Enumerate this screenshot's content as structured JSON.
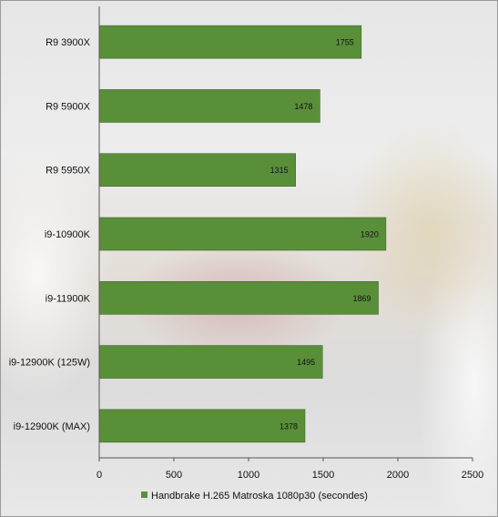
{
  "chart_data": {
    "type": "bar",
    "orientation": "horizontal",
    "categories": [
      "R9 3900X",
      "R9 5900X",
      "R9 5950X",
      "i9-10900K",
      "i9-11900K",
      "i9-12900K (125W)",
      "i9-12900K (MAX)"
    ],
    "series": [
      {
        "name": "Handbrake H.265 Matroska 1080p30 (secondes)",
        "values": [
          1755,
          1478,
          1315,
          1920,
          1869,
          1495,
          1378
        ],
        "value_labels": [
          "1755",
          "1478",
          "1315",
          "1920",
          "1869",
          "1495",
          "1378"
        ],
        "color": "#5a8f3a"
      }
    ],
    "xlim": [
      0,
      2500
    ],
    "xticks": [
      0,
      500,
      1000,
      1500,
      2000,
      2500
    ],
    "xtick_labels": [
      "0",
      "500",
      "1000",
      "1500",
      "2000",
      "2500"
    ],
    "grid": false,
    "legend_position": "bottom"
  }
}
